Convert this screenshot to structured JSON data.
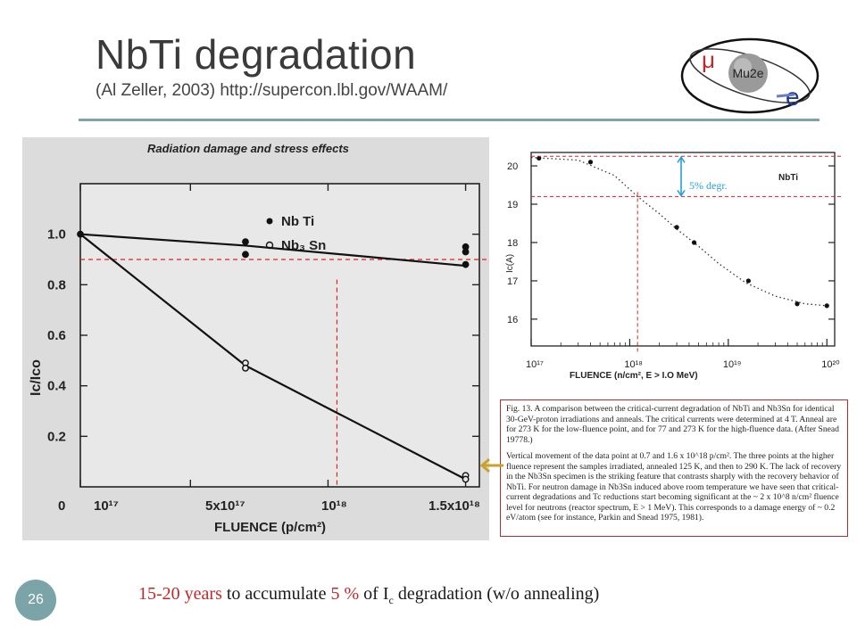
{
  "slide": {
    "title": "NbTi degradation",
    "subtitle": "(Al Zeller, 2003) http://supercon.lbl.gov/WAAM/",
    "page_number": "26",
    "logo_text": "Mu2e",
    "logo_mu": "μ",
    "logo_e": "e",
    "footer": {
      "part1": "15-20 years",
      "part2": " to accumulate ",
      "part3": "5 %",
      "part4": " of I",
      "part4_sub": "c",
      "part5": " degradation (w/o annealing)"
    },
    "caption": {
      "para1": "Fig. 13. A comparison between the critical-current degradation of NbTi and Nb3Sn for identical 30-GeV-proton irradiations and anneals. The critical currents were determined at 4 T. Anneal are for 273 K for the low-fluence point, and for 77 and 273 K for the high-fluence data. (After Snead 19778.)",
      "para2": "Vertical movement of the data point at 0.7 and 1.6 x 10^18 p/cm². The three points at the higher fluence represent the samples irradiated, annealed 125 K, and then to 290 K. The lack of recovery in the Nb3Sn specimen is the striking feature that contrasts sharply with the recovery behavior of NbTi. For neutron damage in Nb3Sn induced above room temperature we have seen that critical-current degradations and Tc reductions start becoming significant at the ~ 2 x 10^8 n/cm² fluence level for neutrons (reactor spectrum, E > 1 MeV). This corresponds to a damage energy of ~ 0.2 eV/atom (see for instance, Parkin and Snead 1975, 1981)."
    }
  },
  "chart_data": [
    {
      "type": "line",
      "title": "Radiation damage and stress effects",
      "xlabel": "FLUENCE (p/cm²)",
      "ylabel": "Ic/Ico",
      "x_tick_labels": [
        "0",
        "10¹⁷",
        "5x10¹⁷",
        "10¹⁸",
        "1.5x10¹⁸"
      ],
      "x_ticks": [
        0.1,
        0.5,
        1.0,
        1.5
      ],
      "y_tick_labels": [
        "1.0",
        "0.8",
        "0.6",
        "0.4",
        "0.2"
      ],
      "y_ticks": [
        1.0,
        0.8,
        0.6,
        0.4,
        0.2
      ],
      "xlim": [
        0.1,
        1.55
      ],
      "ylim": [
        0,
        1.2
      ],
      "legend": "top-right",
      "series": [
        {
          "name": "Nb Ti",
          "marker": "filled",
          "points": [
            [
              0.1,
              1.0
            ],
            [
              0.7,
              0.97
            ],
            [
              0.7,
              0.92
            ],
            [
              1.5,
              0.95
            ],
            [
              1.5,
              0.93
            ],
            [
              1.5,
              0.88
            ]
          ],
          "line": [
            [
              0.1,
              1.0
            ],
            [
              0.7,
              0.955
            ],
            [
              1.5,
              0.875
            ]
          ]
        },
        {
          "name": "Nb3 Sn",
          "marker": "open",
          "points": [
            [
              0.7,
              0.49
            ],
            [
              0.7,
              0.47
            ],
            [
              1.5,
              0.045
            ],
            [
              1.5,
              0.03
            ]
          ],
          "line": [
            [
              0.1,
              1.0
            ],
            [
              0.7,
              0.48
            ],
            [
              1.5,
              0.03
            ]
          ]
        }
      ],
      "annotation_lines": {
        "y": 0.9,
        "x": 1.0
      }
    },
    {
      "type": "scatter",
      "title": "",
      "xlabel": "FLUENCE (n/cm², E > I.O MeV)",
      "ylabel": "Ic(A)",
      "x_scale": "log",
      "x_tick_labels": [
        "10¹⁷",
        "10¹⁸",
        "10¹⁹",
        "10²⁰"
      ],
      "x_ticks": [
        1e+17,
        1e+18,
        1e+19,
        1e+20
      ],
      "y_tick_labels": [
        "20",
        "19",
        "18",
        "17",
        "16"
      ],
      "y_ticks": [
        20,
        19,
        18,
        17,
        16
      ],
      "xlim": [
        1e+17,
        1.2e+20
      ],
      "ylim": [
        15.3,
        20.35
      ],
      "series": [
        {
          "name": "NbTi",
          "x": [
            1.2e+17,
            4e+17,
            3e+18,
            4.5e+18,
            1.6e+19,
            5e+19,
            1e+20
          ],
          "y": [
            20.2,
            20.1,
            18.4,
            18.0,
            17.0,
            16.4,
            16.35
          ]
        }
      ],
      "fit_curve": {
        "x": [
          1e+17,
          3e+17,
          7e+17,
          1.2e+18,
          2e+18,
          3e+18,
          5e+18,
          8e+18,
          1.5e+19,
          3e+19,
          6e+19,
          1e+20
        ],
        "y": [
          20.22,
          20.15,
          19.75,
          19.2,
          18.75,
          18.35,
          17.9,
          17.45,
          16.95,
          16.6,
          16.4,
          16.35
        ]
      },
      "annotation": "5% degr.",
      "annotation_lines": {
        "y_top": 20.25,
        "y_bottom": 19.2,
        "x": 1.2e+18
      }
    }
  ]
}
